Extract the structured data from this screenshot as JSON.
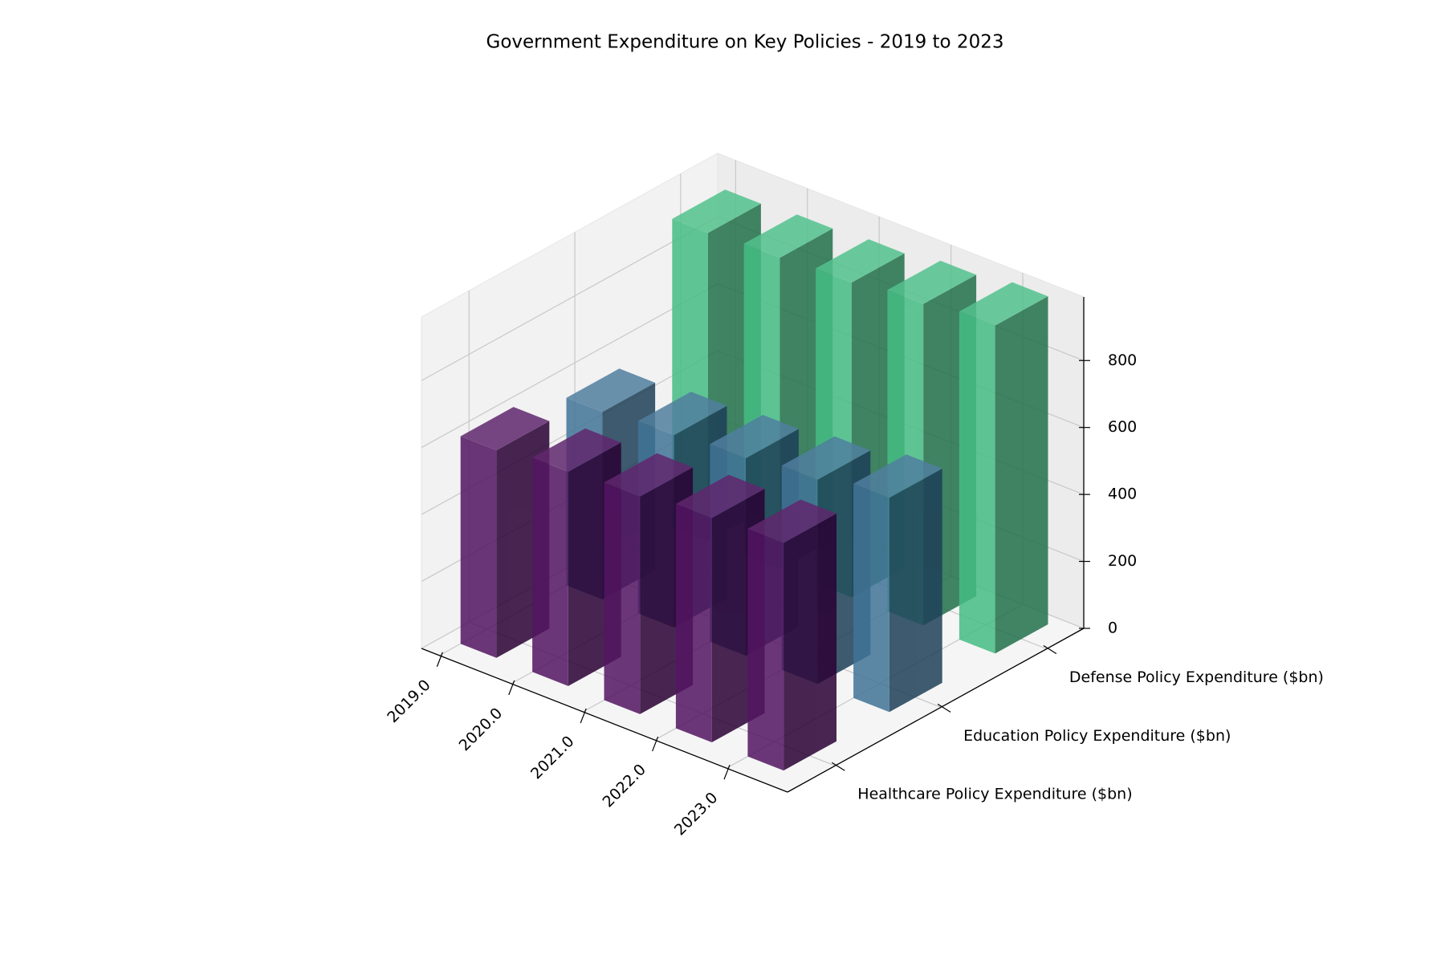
{
  "chart_data": {
    "type": "bar3d",
    "title": "Government Expenditure on Key Policies - 2019 to 2023",
    "x": [
      2019,
      2020,
      2021,
      2022,
      2023
    ],
    "xlim": [
      2018.75,
      2023.85
    ],
    "xticks": [
      {
        "value": 2019,
        "label": "2019.0"
      },
      {
        "value": 2020,
        "label": "2020.0"
      },
      {
        "value": 2021,
        "label": "2021.0"
      },
      {
        "value": 2022,
        "label": "2022.0"
      },
      {
        "value": 2023,
        "label": "2023.0"
      }
    ],
    "series": [
      {
        "name": "Healthcare Policy Expenditure ($bn)",
        "color": "#440154",
        "values": [
          620,
          640,
          650,
          670,
          680
        ]
      },
      {
        "name": "Education Policy Expenditure ($bn)",
        "color": "#31688e",
        "values": [
          560,
          575,
          590,
          610,
          640
        ]
      },
      {
        "name": "Defense Policy Expenditure ($bn)",
        "color": "#35b779",
        "values": [
          920,
          930,
          940,
          960,
          980
        ]
      }
    ],
    "zlim": [
      0,
      990
    ],
    "zticks": [
      0,
      200,
      400,
      600,
      800
    ],
    "grid": true
  }
}
